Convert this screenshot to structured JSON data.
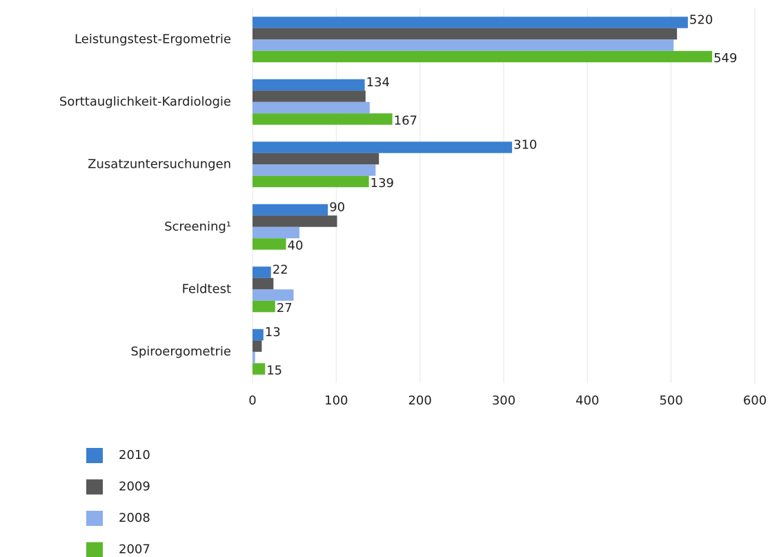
{
  "chart_data": {
    "type": "hbar",
    "categories": [
      "Leistungstest-Ergometrie",
      "Sorttauglichkeit-Kardiologie",
      "Zusatzuntersuchungen",
      "Screening¹",
      "Feldtest",
      "Spiroergometrie"
    ],
    "series": [
      {
        "name": "2010",
        "color": "#3b7fd0",
        "values": [
          520,
          134,
          310,
          90,
          22,
          13
        ],
        "data_labels": true
      },
      {
        "name": "2009",
        "color": "#585858",
        "values": [
          507,
          135,
          151,
          101,
          25,
          11
        ],
        "data_labels": false
      },
      {
        "name": "2008",
        "color": "#8caeea",
        "values": [
          503,
          140,
          147,
          56,
          49,
          3
        ],
        "data_labels": false
      },
      {
        "name": "2007",
        "color": "#5cb82a",
        "values": [
          549,
          167,
          139,
          40,
          27,
          15
        ],
        "data_labels": true
      }
    ],
    "xlim": [
      0,
      600
    ],
    "xticks": [
      0,
      100,
      200,
      300,
      400,
      500,
      600
    ],
    "grid": true
  }
}
